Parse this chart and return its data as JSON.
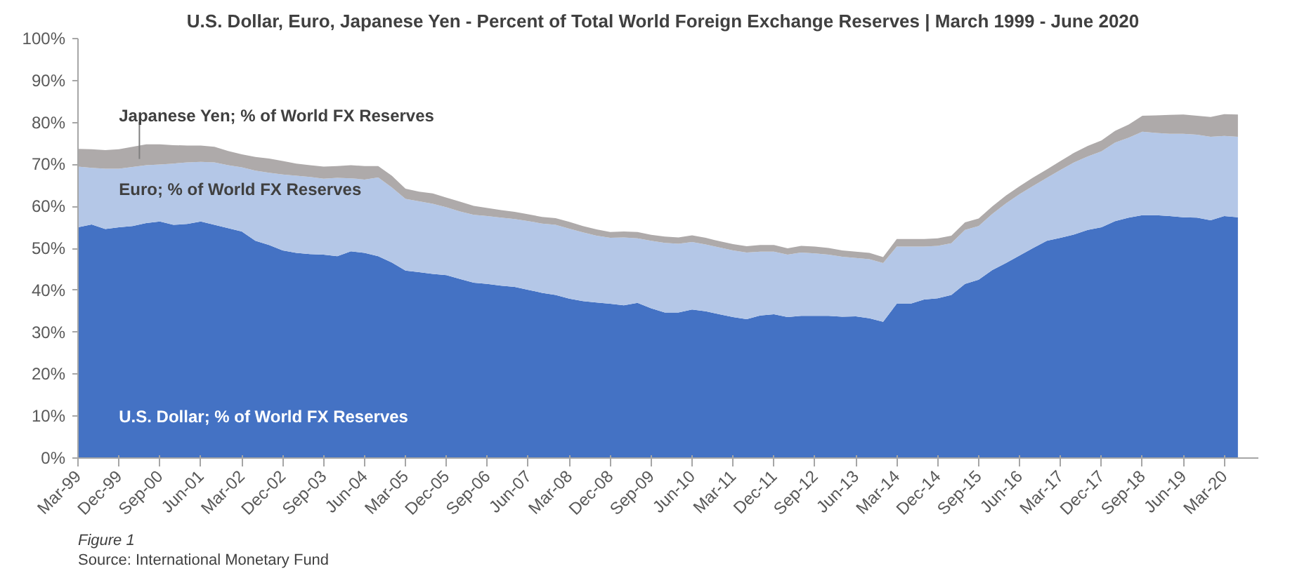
{
  "chart_data": {
    "type": "area",
    "stacked": true,
    "title": "U.S. Dollar, Euro, Japanese Yen - Percent of Total World Foreign Exchange Reserves  |  March 1999 - June 2020",
    "annotations": [
      "Figure 1",
      "Source: International Monetary Fund"
    ],
    "categories": [
      "Mar-99",
      null,
      null,
      "Dec-99",
      null,
      null,
      "Sep-00",
      null,
      null,
      "Jun-01",
      null,
      null,
      "Mar-02",
      null,
      null,
      "Dec-02",
      null,
      null,
      "Sep-03",
      null,
      null,
      "Jun-04",
      null,
      null,
      "Mar-05",
      null,
      null,
      "Dec-05",
      null,
      null,
      "Sep-06",
      null,
      null,
      "Jun-07",
      null,
      null,
      "Mar-08",
      null,
      null,
      "Dec-08",
      null,
      null,
      "Sep-09",
      null,
      null,
      "Jun-10",
      null,
      null,
      "Mar-11",
      null,
      null,
      "Dec-11",
      null,
      null,
      "Sep-12",
      null,
      null,
      "Jun-13",
      null,
      null,
      "Mar-14",
      null,
      null,
      "Dec-14",
      null,
      null,
      "Sep-15",
      null,
      null,
      "Jun-16",
      null,
      null,
      "Mar-17",
      null,
      null,
      "Dec-17",
      null,
      null,
      "Sep-18",
      null,
      null,
      "Jun-19",
      null,
      null,
      "Mar-20",
      null
    ],
    "series": [
      {
        "name": "U.S. Dollar; % of World FX Reserves",
        "color": "#4472c4",
        "values": [
          55.0,
          55.7,
          54.6,
          55.0,
          55.3,
          56.0,
          56.4,
          55.6,
          55.8,
          56.4,
          55.6,
          54.8,
          54.0,
          51.8,
          50.8,
          49.5,
          48.9,
          48.6,
          48.5,
          48.1,
          49.3,
          48.9,
          48.1,
          46.6,
          44.7,
          44.3,
          43.9,
          43.6,
          42.7,
          41.8,
          41.5,
          41.1,
          40.8,
          40.1,
          39.4,
          38.9,
          38.0,
          37.4,
          37.1,
          36.8,
          36.4,
          37.0,
          35.7,
          34.7,
          34.7,
          35.4,
          35.0,
          34.3,
          33.6,
          33.1,
          34.0,
          34.3,
          33.6,
          33.9,
          33.9,
          33.9,
          33.7,
          33.8,
          33.3,
          32.5,
          36.8,
          36.8,
          37.8,
          38.1,
          38.9,
          41.5,
          42.5,
          44.8,
          46.5,
          48.3,
          50.1,
          51.8,
          52.5,
          53.3,
          54.4,
          55.0,
          56.5,
          57.3,
          57.9,
          57.9,
          57.7,
          57.4,
          57.3,
          56.7,
          57.7,
          57.4
        ]
      },
      {
        "name": "Euro; % of World FX Reserves",
        "color": "#b4c7e7",
        "values": [
          14.5,
          13.5,
          14.4,
          14.0,
          14.1,
          13.8,
          13.6,
          14.6,
          14.7,
          14.2,
          14.9,
          15.0,
          15.3,
          16.7,
          17.2,
          18.1,
          18.4,
          18.4,
          18.1,
          18.7,
          17.4,
          17.5,
          18.8,
          17.9,
          17.1,
          16.9,
          16.7,
          16.2,
          16.1,
          16.2,
          16.2,
          16.2,
          16.2,
          16.4,
          16.5,
          16.7,
          16.7,
          16.4,
          15.9,
          15.7,
          16.2,
          15.4,
          16.1,
          16.6,
          16.4,
          16.1,
          15.9,
          15.9,
          15.9,
          15.9,
          15.2,
          14.9,
          14.9,
          15.1,
          14.9,
          14.6,
          14.3,
          13.9,
          14.1,
          14.0,
          13.6,
          13.6,
          12.6,
          12.5,
          12.3,
          12.9,
          12.8,
          13.4,
          14.2,
          14.6,
          14.8,
          15.0,
          16.2,
          17.2,
          17.5,
          18.1,
          18.7,
          19.1,
          19.9,
          19.6,
          19.6,
          19.9,
          19.8,
          19.9,
          19.1,
          19.2
        ]
      },
      {
        "name": "Japanese Yen; % of World FX Reserves",
        "color": "#aeaaaa",
        "values": [
          4.2,
          4.4,
          4.4,
          4.6,
          4.8,
          5.0,
          4.8,
          4.4,
          4.0,
          3.9,
          3.7,
          3.4,
          3.1,
          3.3,
          3.4,
          3.2,
          2.9,
          2.8,
          2.9,
          2.8,
          3.1,
          3.2,
          2.7,
          2.8,
          2.4,
          2.3,
          2.5,
          2.3,
          2.3,
          2.1,
          1.9,
          1.8,
          1.7,
          1.6,
          1.6,
          1.6,
          1.6,
          1.5,
          1.5,
          1.4,
          1.4,
          1.5,
          1.4,
          1.5,
          1.5,
          1.6,
          1.6,
          1.5,
          1.5,
          1.5,
          1.6,
          1.6,
          1.5,
          1.6,
          1.6,
          1.6,
          1.5,
          1.5,
          1.5,
          1.4,
          1.8,
          1.8,
          1.8,
          1.8,
          1.8,
          1.8,
          1.8,
          1.8,
          1.9,
          1.9,
          2.0,
          2.0,
          2.1,
          2.3,
          2.5,
          2.6,
          2.8,
          3.1,
          3.8,
          4.2,
          4.5,
          4.6,
          4.5,
          4.7,
          5.2,
          5.3
        ]
      }
    ],
    "ylim": [
      0,
      100
    ],
    "yticks": [
      {
        "value": 0,
        "label": "0%"
      },
      {
        "value": 10,
        "label": "10%"
      },
      {
        "value": 20,
        "label": "20%"
      },
      {
        "value": 30,
        "label": "30%"
      },
      {
        "value": 40,
        "label": "40%"
      },
      {
        "value": 50,
        "label": "50%"
      },
      {
        "value": 60,
        "label": "60%"
      },
      {
        "value": 70,
        "label": "70%"
      },
      {
        "value": 80,
        "label": "80%"
      },
      {
        "value": 90,
        "label": "90%"
      },
      {
        "value": 100,
        "label": "100%"
      }
    ],
    "grid": false
  }
}
